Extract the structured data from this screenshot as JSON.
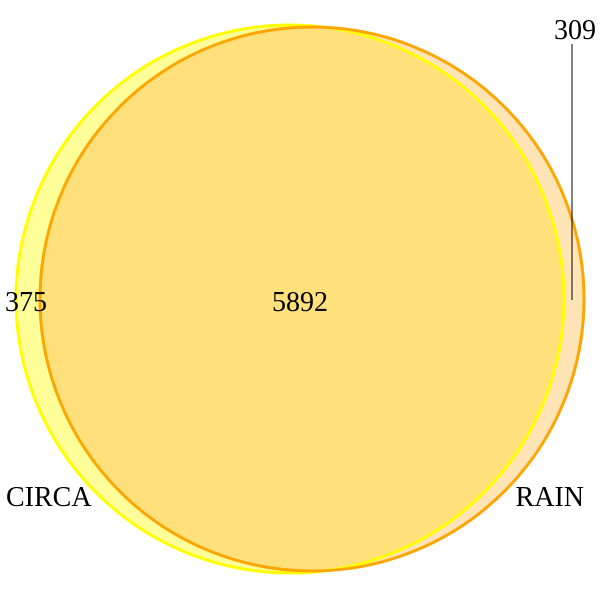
{
  "venn": {
    "sets": [
      {
        "name": "CIRCA",
        "fill": "#ffff99",
        "stroke": "#ffff00"
      },
      {
        "name": "RAIN",
        "fill": "#ffe4b5",
        "stroke": "#ffa500"
      }
    ],
    "only_circa": "375",
    "intersection": "5892",
    "only_rain": "309",
    "overlap_fill": "#ffe07a"
  }
}
